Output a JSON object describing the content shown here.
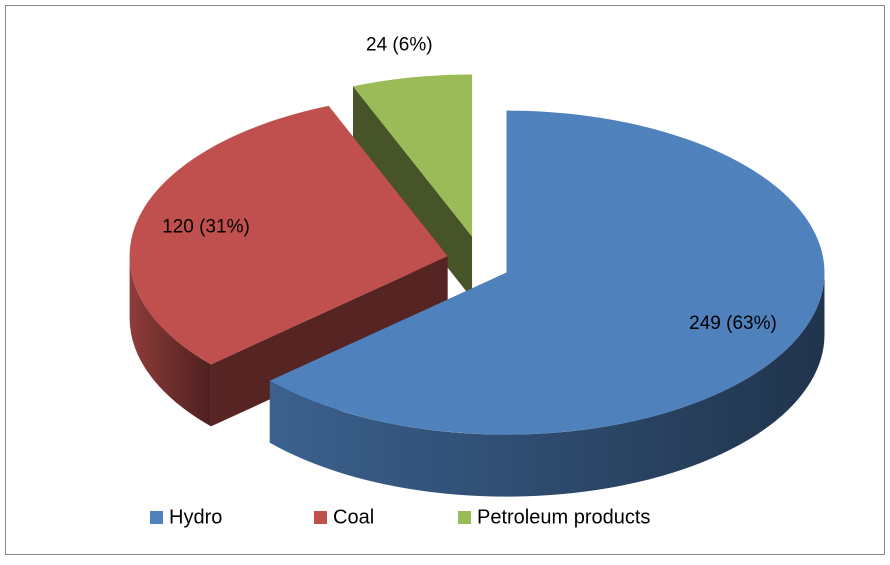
{
  "chart_data": {
    "type": "pie",
    "categories": [
      "Hydro",
      "Coal",
      "Petroleum products"
    ],
    "values": [
      249,
      120,
      24
    ],
    "value_labels": [
      "249 (63%)",
      "120 (31%)",
      "24 (6%)"
    ],
    "colors": [
      "#4f81bd",
      "#c0504d",
      "#9bbb59"
    ],
    "legend": "bottom",
    "exploded": true,
    "three_d": true
  }
}
